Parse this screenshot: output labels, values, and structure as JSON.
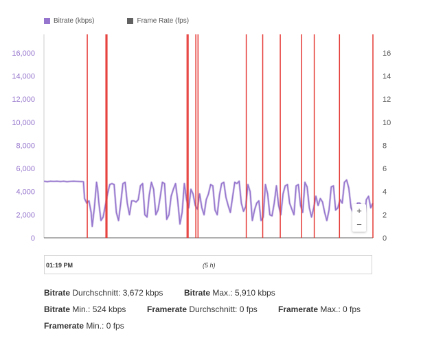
{
  "chart_data": {
    "type": "line",
    "legend": [
      {
        "name": "Bitrate (kbps)",
        "color": "#9575cd"
      },
      {
        "name": "Frame Rate (fps)",
        "color": "#616161"
      }
    ],
    "legend_position": "top-left",
    "y_left": {
      "min": 0,
      "max": 17600,
      "ticks": [
        "0",
        "2,000",
        "4,000",
        "6,000",
        "8,000",
        "10,000",
        "12,000",
        "14,000",
        "16,000"
      ],
      "tick_values": [
        0,
        2000,
        4000,
        6000,
        8000,
        10000,
        12000,
        14000,
        16000
      ],
      "color": "#9575cd"
    },
    "y_right": {
      "min": 0,
      "max": 17.6,
      "ticks": [
        "0",
        "2",
        "4",
        "6",
        "8",
        "10",
        "12",
        "14",
        "16"
      ],
      "tick_values": [
        0,
        2,
        4,
        6,
        8,
        10,
        12,
        14,
        16
      ],
      "color": "#555555"
    },
    "x_range_minutes": [
      0,
      300
    ],
    "bitrate_series": {
      "name": "Bitrate (kbps)",
      "x_minutes": [
        0,
        3,
        6,
        9,
        12,
        15,
        18,
        21,
        24,
        27,
        30,
        33,
        36,
        37,
        39,
        41,
        43,
        44,
        46,
        48,
        49,
        50,
        52,
        54,
        56,
        58,
        60,
        62,
        64,
        66,
        68,
        70,
        72,
        74,
        76,
        78,
        80,
        82,
        84,
        86,
        88,
        90,
        92,
        94,
        96,
        98,
        100,
        102,
        104,
        106,
        108,
        110,
        112,
        114,
        116,
        118,
        120,
        122,
        124,
        126,
        128,
        130,
        132,
        134,
        136,
        138,
        140,
        142,
        144,
        146,
        148,
        150,
        152,
        154,
        156,
        158,
        160,
        162,
        164,
        166,
        168,
        170,
        172,
        174,
        176,
        178,
        180,
        182,
        184,
        186,
        188,
        190,
        192,
        194,
        196,
        198,
        200,
        202,
        204,
        206,
        208,
        210,
        212,
        214,
        216,
        218,
        220,
        222,
        224,
        226,
        228,
        230,
        232,
        234,
        236,
        238,
        240,
        242,
        244,
        246,
        248,
        250,
        252,
        254,
        256,
        258,
        260,
        262,
        264,
        266,
        268,
        270,
        272,
        274,
        276,
        278,
        280,
        282,
        284,
        286,
        288,
        290,
        292,
        294,
        296,
        298,
        300
      ],
      "values": [
        4900,
        4850,
        4900,
        4880,
        4900,
        4870,
        4900,
        4850,
        4880,
        4900,
        4880,
        4870,
        4850,
        3400,
        3000,
        3200,
        2200,
        1000,
        2600,
        4800,
        4200,
        3100,
        1500,
        1800,
        2800,
        3800,
        4600,
        4700,
        4600,
        2200,
        1500,
        3000,
        4700,
        4800,
        3000,
        2000,
        3200,
        3200,
        3100,
        3300,
        4500,
        4700,
        2000,
        1800,
        3700,
        4800,
        4200,
        2000,
        2400,
        3500,
        4800,
        4700,
        1600,
        2000,
        3600,
        4200,
        4700,
        3200,
        1200,
        2200,
        4700,
        3300,
        2600,
        4200,
        3800,
        2800,
        2500,
        3800,
        2600,
        2000,
        3300,
        3800,
        4600,
        4500,
        2400,
        2000,
        3700,
        4700,
        4800,
        3500,
        2800,
        2200,
        3500,
        4800,
        4700,
        4900,
        3000,
        2300,
        2700,
        4600,
        4000,
        1500,
        2400,
        3000,
        3200,
        1500,
        1800,
        4600,
        3800,
        2000,
        1900,
        3000,
        4500,
        2800,
        2000,
        3800,
        4500,
        4600,
        3000,
        2500,
        2000,
        4500,
        4600,
        2800,
        2200,
        4800,
        4400,
        2600,
        1800,
        2600,
        3600,
        2800,
        3400,
        3100,
        2200,
        1500,
        2400,
        4400,
        4500,
        2400,
        2600,
        3300,
        3000,
        4800,
        5000,
        4300,
        2600,
        2200,
        2400,
        3000,
        3000,
        2700,
        1300,
        3300,
        3600,
        2600,
        3000
      ]
    },
    "markers_minutes": [
      39.5,
      56.5,
      57.5,
      130.5,
      131.5,
      138.5,
      140.5,
      184.5,
      199.5,
      215.5,
      235,
      246.5,
      269.5,
      300
    ],
    "marker_color": "#e53935",
    "timeline": {
      "start": "01:19 PM",
      "span": "(5 h)"
    },
    "stats": [
      [
        {
          "key": "Bitrate",
          "text": " Durchschnitt: 3,672 kbps"
        },
        {
          "key": "Bitrate",
          "text": " Max.: 5,910 kbps"
        }
      ],
      [
        {
          "key": "Bitrate",
          "text": " Min.: 524 kbps"
        },
        {
          "key": "Framerate",
          "text": " Durchschnitt: 0 fps"
        },
        {
          "key": "Framerate",
          "text": " Max.: 0 fps"
        }
      ],
      [
        {
          "key": "Framerate",
          "text": " Min.: 0 fps"
        }
      ]
    ],
    "zoom": {
      "in": "+",
      "out": "−"
    }
  }
}
